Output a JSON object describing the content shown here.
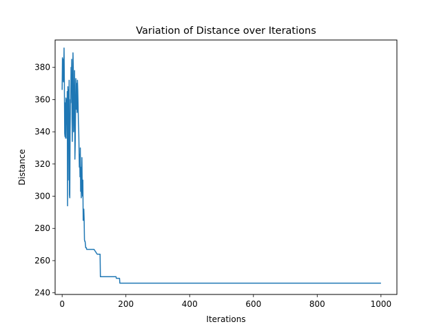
{
  "chart_data": {
    "type": "line",
    "title": "Variation of Distance over Iterations",
    "xlabel": "Iterations",
    "ylabel": "Distance",
    "xlim": [
      -22,
      1050
    ],
    "ylim": [
      239,
      397
    ],
    "xticks": [
      0,
      200,
      400,
      600,
      800,
      1000
    ],
    "yticks": [
      240,
      260,
      280,
      300,
      320,
      340,
      360,
      380
    ],
    "grid": false,
    "line_color": "#1f77b4",
    "series": [
      {
        "x": [
          0,
          1,
          2,
          3,
          4,
          5,
          6,
          7,
          8,
          9,
          10,
          11,
          12,
          13,
          14,
          15,
          16,
          17,
          18,
          19,
          20,
          21,
          22,
          23,
          24,
          25,
          26,
          27,
          28,
          29,
          30,
          31,
          32,
          33,
          34,
          35,
          36,
          37,
          38,
          39,
          40,
          41,
          42,
          43,
          44,
          45,
          46,
          47,
          48,
          49,
          50,
          51,
          52,
          53,
          54,
          55,
          56,
          57,
          58,
          59,
          60,
          61,
          62,
          63,
          64,
          65,
          66,
          67,
          68,
          69,
          70,
          71,
          72,
          73,
          74,
          75,
          76,
          77,
          78,
          79,
          80,
          81,
          82,
          83,
          84,
          85,
          86,
          87,
          88,
          89,
          90,
          91,
          92,
          93,
          94,
          95,
          96,
          100,
          110,
          119,
          120,
          150,
          169,
          170,
          180,
          181,
          300,
          500,
          700,
          900,
          1000
        ],
        "y": [
          366,
          386,
          372,
          385,
          371,
          378,
          392,
          370,
          339,
          337,
          358,
          336,
          361,
          345,
          360,
          336,
          365,
          294,
          368,
          310,
          366,
          352,
          372,
          301,
          299,
          340,
          360,
          358,
          380,
          372,
          385,
          348,
          334,
          362,
          389,
          380,
          340,
          351,
          358,
          378,
          323,
          332,
          352,
          373,
          368,
          354,
          370,
          352,
          372,
          366,
          357,
          346,
          341,
          330,
          318,
          326,
          312,
          330,
          303,
          318,
          299,
          312,
          324,
          305,
          300,
          310,
          285,
          291,
          292,
          286,
          273,
          272,
          272,
          270,
          268,
          268,
          268,
          267,
          267,
          267,
          267,
          267,
          267,
          267,
          267,
          267,
          267,
          267,
          267,
          267,
          267,
          267,
          267,
          267,
          267,
          267,
          267,
          267,
          264,
          264,
          250,
          250,
          250,
          249,
          249,
          246,
          246,
          246,
          246,
          246,
          246
        ]
      }
    ]
  }
}
